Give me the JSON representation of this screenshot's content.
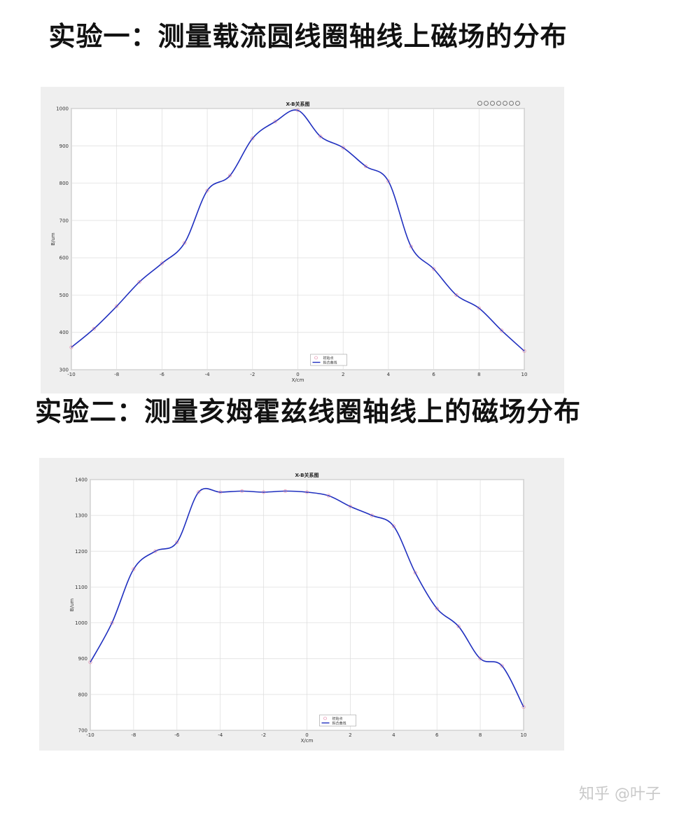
{
  "headings": {
    "exp1": "实验一：测量载流圆线圈轴线上磁场的分布",
    "exp2": "实验二：测量亥姆霍兹线圈轴线上的磁场分布"
  },
  "watermark": "知乎 @叶子",
  "toolbar_icons": [
    "brush-icon",
    "datatip-icon",
    "rotate-icon",
    "pan-icon",
    "zoom-in-icon",
    "zoom-out-icon",
    "home-icon"
  ],
  "colors": {
    "curve": "#1f2fbf",
    "marker": "#e07aa0",
    "grid": "#dcdcdc",
    "figure_bg": "#efefef"
  },
  "chart_data": [
    {
      "type": "line",
      "title": "X-B关系图",
      "xlabel": "X/cm",
      "ylabel": "B/um",
      "xlim": [
        -10,
        10
      ],
      "ylim": [
        300,
        1000
      ],
      "xticks": [
        -10,
        -8,
        -6,
        -4,
        -2,
        0,
        2,
        4,
        6,
        8,
        10
      ],
      "yticks": [
        300,
        400,
        500,
        600,
        700,
        800,
        900,
        1000
      ],
      "grid": true,
      "legend_position": "bottom-center",
      "series": [
        {
          "name": "初始点",
          "style": "markers",
          "x": [
            -10,
            -9,
            -8,
            -7,
            -6,
            -5,
            -4,
            -3,
            -2,
            -1,
            0,
            1,
            2,
            3,
            4,
            5,
            6,
            7,
            8,
            9,
            10
          ],
          "y": [
            360,
            410,
            470,
            535,
            585,
            640,
            780,
            820,
            920,
            965,
            995,
            925,
            895,
            845,
            805,
            630,
            570,
            500,
            465,
            405,
            350
          ]
        },
        {
          "name": "拟合曲线",
          "style": "line",
          "x": [
            -10,
            -9,
            -8,
            -7,
            -6,
            -5,
            -4,
            -3,
            -2,
            -1,
            0,
            1,
            2,
            3,
            4,
            5,
            6,
            7,
            8,
            9,
            10
          ],
          "y": [
            360,
            410,
            470,
            535,
            585,
            640,
            780,
            820,
            920,
            965,
            995,
            925,
            895,
            845,
            805,
            630,
            570,
            500,
            465,
            405,
            350
          ]
        }
      ]
    },
    {
      "type": "line",
      "title": "X-B关系图",
      "xlabel": "X/cm",
      "ylabel": "B/um",
      "xlim": [
        -10,
        10
      ],
      "ylim": [
        700,
        1400
      ],
      "xticks": [
        -10,
        -8,
        -6,
        -4,
        -2,
        0,
        2,
        4,
        6,
        8,
        10
      ],
      "yticks": [
        700,
        800,
        900,
        1000,
        1100,
        1200,
        1300,
        1400
      ],
      "grid": true,
      "legend_position": "bottom-center",
      "series": [
        {
          "name": "初始点",
          "style": "markers",
          "x": [
            -10,
            -9,
            -8,
            -7,
            -6,
            -5,
            -4,
            -3,
            -2,
            -1,
            0,
            1,
            2,
            3,
            4,
            5,
            6,
            7,
            8,
            9,
            10
          ],
          "y": [
            890,
            1000,
            1150,
            1200,
            1225,
            1365,
            1365,
            1368,
            1365,
            1368,
            1365,
            1355,
            1325,
            1300,
            1270,
            1140,
            1040,
            990,
            900,
            880,
            765
          ]
        },
        {
          "name": "拟合曲线",
          "style": "line",
          "x": [
            -10,
            -9,
            -8,
            -7,
            -6,
            -5,
            -4,
            -3,
            -2,
            -1,
            0,
            1,
            2,
            3,
            4,
            5,
            6,
            7,
            8,
            9,
            10
          ],
          "y": [
            890,
            1000,
            1150,
            1200,
            1225,
            1365,
            1365,
            1368,
            1365,
            1368,
            1365,
            1355,
            1325,
            1300,
            1270,
            1140,
            1040,
            990,
            900,
            880,
            765
          ]
        }
      ]
    }
  ]
}
